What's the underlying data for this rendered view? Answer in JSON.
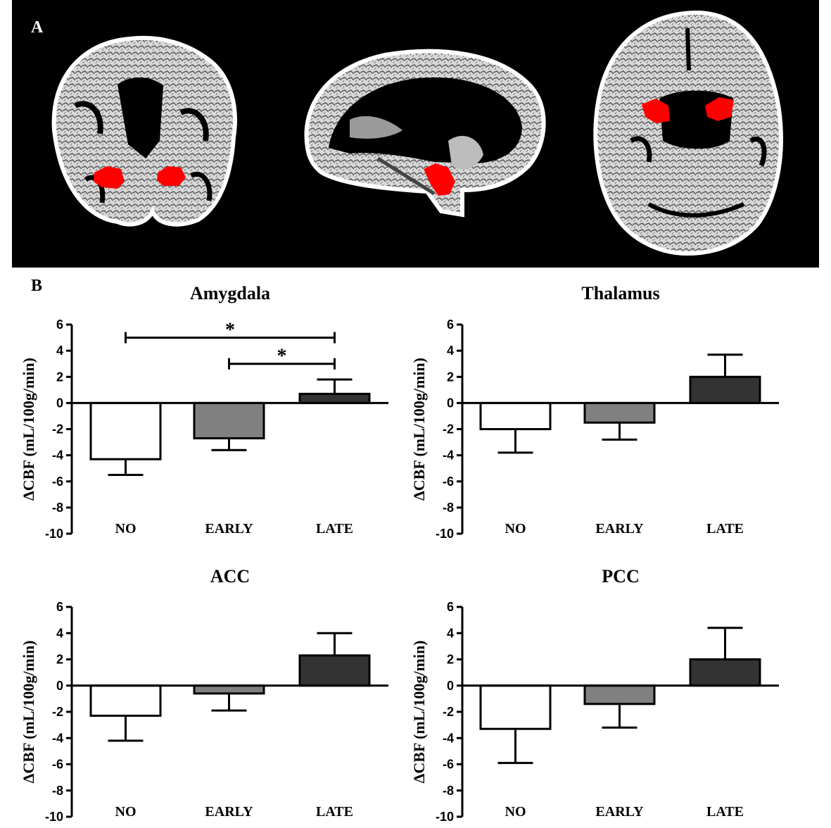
{
  "panels": {
    "a_label": "A",
    "b_label": "B"
  },
  "brain_views": [
    {
      "view": "coronal"
    },
    {
      "view": "sagittal"
    },
    {
      "view": "axial"
    }
  ],
  "colors": {
    "roi": "#ff0000",
    "NO": "#ffffff",
    "EARLY": "#808080",
    "LATE": "#333333",
    "axis": "#000000"
  },
  "chart_data": [
    {
      "type": "bar",
      "title": "Amygdala",
      "ylabel": "ΔCBF (mL/100g/min)",
      "categories": [
        "NO",
        "EARLY",
        "LATE"
      ],
      "values": [
        -4.3,
        -2.7,
        0.7
      ],
      "errors": [
        1.2,
        0.9,
        1.1
      ],
      "ylim": [
        -10,
        6
      ],
      "yticks": [
        6,
        4,
        2,
        0,
        -2,
        -4,
        -6,
        -8,
        -10
      ],
      "significance": [
        {
          "from": "NO",
          "to": "LATE",
          "y": 5,
          "label": "*"
        },
        {
          "from": "EARLY",
          "to": "LATE",
          "y": 3,
          "label": "*"
        }
      ]
    },
    {
      "type": "bar",
      "title": "Thalamus",
      "ylabel": "ΔCBF (mL/100g/min)",
      "categories": [
        "NO",
        "EARLY",
        "LATE"
      ],
      "values": [
        -2.0,
        -1.5,
        2.0
      ],
      "errors": [
        1.8,
        1.3,
        1.7
      ],
      "ylim": [
        -10,
        6
      ],
      "yticks": [
        6,
        4,
        2,
        0,
        -2,
        -4,
        -6,
        -8,
        -10
      ],
      "significance": []
    },
    {
      "type": "bar",
      "title": "ACC",
      "ylabel": "ΔCBF (mL/100g/min)",
      "categories": [
        "NO",
        "EARLY",
        "LATE"
      ],
      "values": [
        -2.3,
        -0.6,
        2.3
      ],
      "errors": [
        1.9,
        1.3,
        1.7
      ],
      "ylim": [
        -10,
        6
      ],
      "yticks": [
        6,
        4,
        2,
        0,
        -2,
        -4,
        -6,
        -8,
        -10
      ],
      "significance": []
    },
    {
      "type": "bar",
      "title": "PCC",
      "ylabel": "ΔCBF (mL/100g/min)",
      "categories": [
        "NO",
        "EARLY",
        "LATE"
      ],
      "values": [
        -3.3,
        -1.4,
        2.0
      ],
      "errors": [
        2.6,
        1.8,
        2.4
      ],
      "ylim": [
        -10,
        6
      ],
      "yticks": [
        6,
        4,
        2,
        0,
        -2,
        -4,
        -6,
        -8,
        -10
      ],
      "significance": []
    }
  ]
}
